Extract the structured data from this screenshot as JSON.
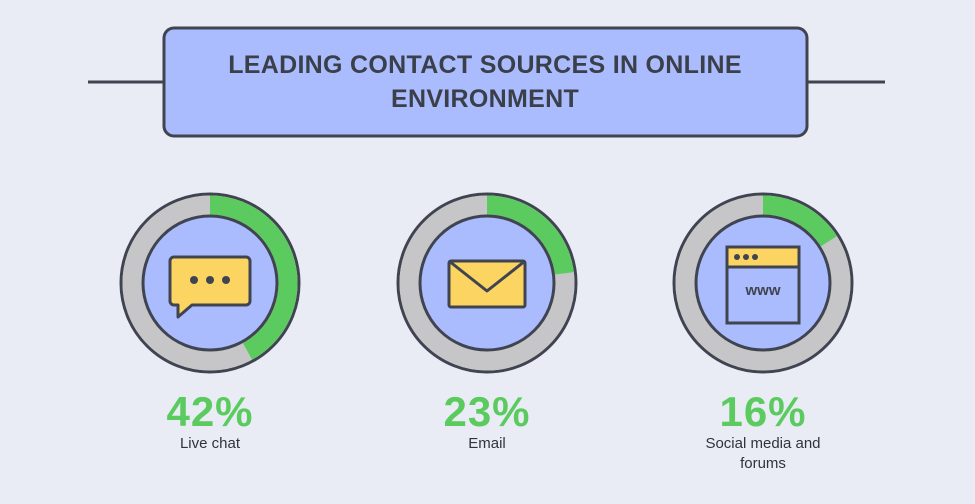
{
  "chart_data": {
    "type": "progress-ring",
    "title": "LEADING CONTACT SOURCES IN ONLINE ENVIRONMENT",
    "categories": [
      "Live chat",
      "Email",
      "Social media and forums"
    ],
    "values": [
      42,
      23,
      16
    ],
    "value_labels": [
      "42%",
      "23%",
      "16%"
    ],
    "ylim": [
      0,
      100
    ],
    "color": "#5ccb5f",
    "track_color": "#c6c6c8",
    "icon_text": "www"
  }
}
